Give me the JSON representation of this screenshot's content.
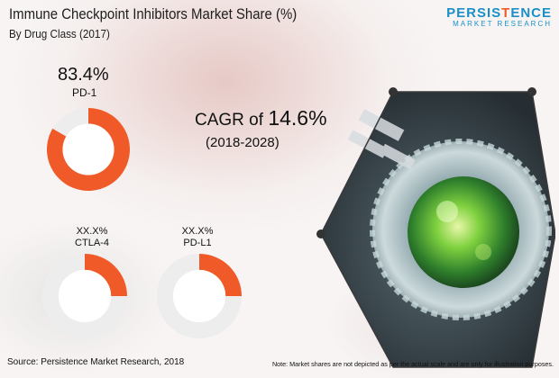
{
  "header": {
    "title": "Immune Checkpoint Inhibitors Market Share (%)",
    "subtitle": "By Drug Class (2017)"
  },
  "logo": {
    "name_part1": "PERSIS",
    "name_accent": "T",
    "name_part2": "ENCE",
    "tagline": "MARKET RESEARCH"
  },
  "chart_data": {
    "type": "pie",
    "title": "Immune Checkpoint Inhibitors Market Share (%)",
    "subtitle": "By Drug Class (2017)",
    "categories": [
      "PD-1",
      "CTLA-4",
      "PD-L1"
    ],
    "labels": [
      "83.4%",
      "XX.X%",
      "XX.X%"
    ],
    "values": [
      83.4,
      null,
      null
    ],
    "colors": {
      "segment": "#f05a28",
      "track": "#ededed",
      "center": "#ffffff"
    }
  },
  "cagr": {
    "prefix": "CAGR of",
    "value": "14.6%",
    "period": "(2018-2028)"
  },
  "footer": {
    "source": "Source: Persistence Market Research, 2018",
    "note": "Note: Market shares are not depicted as per the actual scale and are only for illustration purposes."
  }
}
